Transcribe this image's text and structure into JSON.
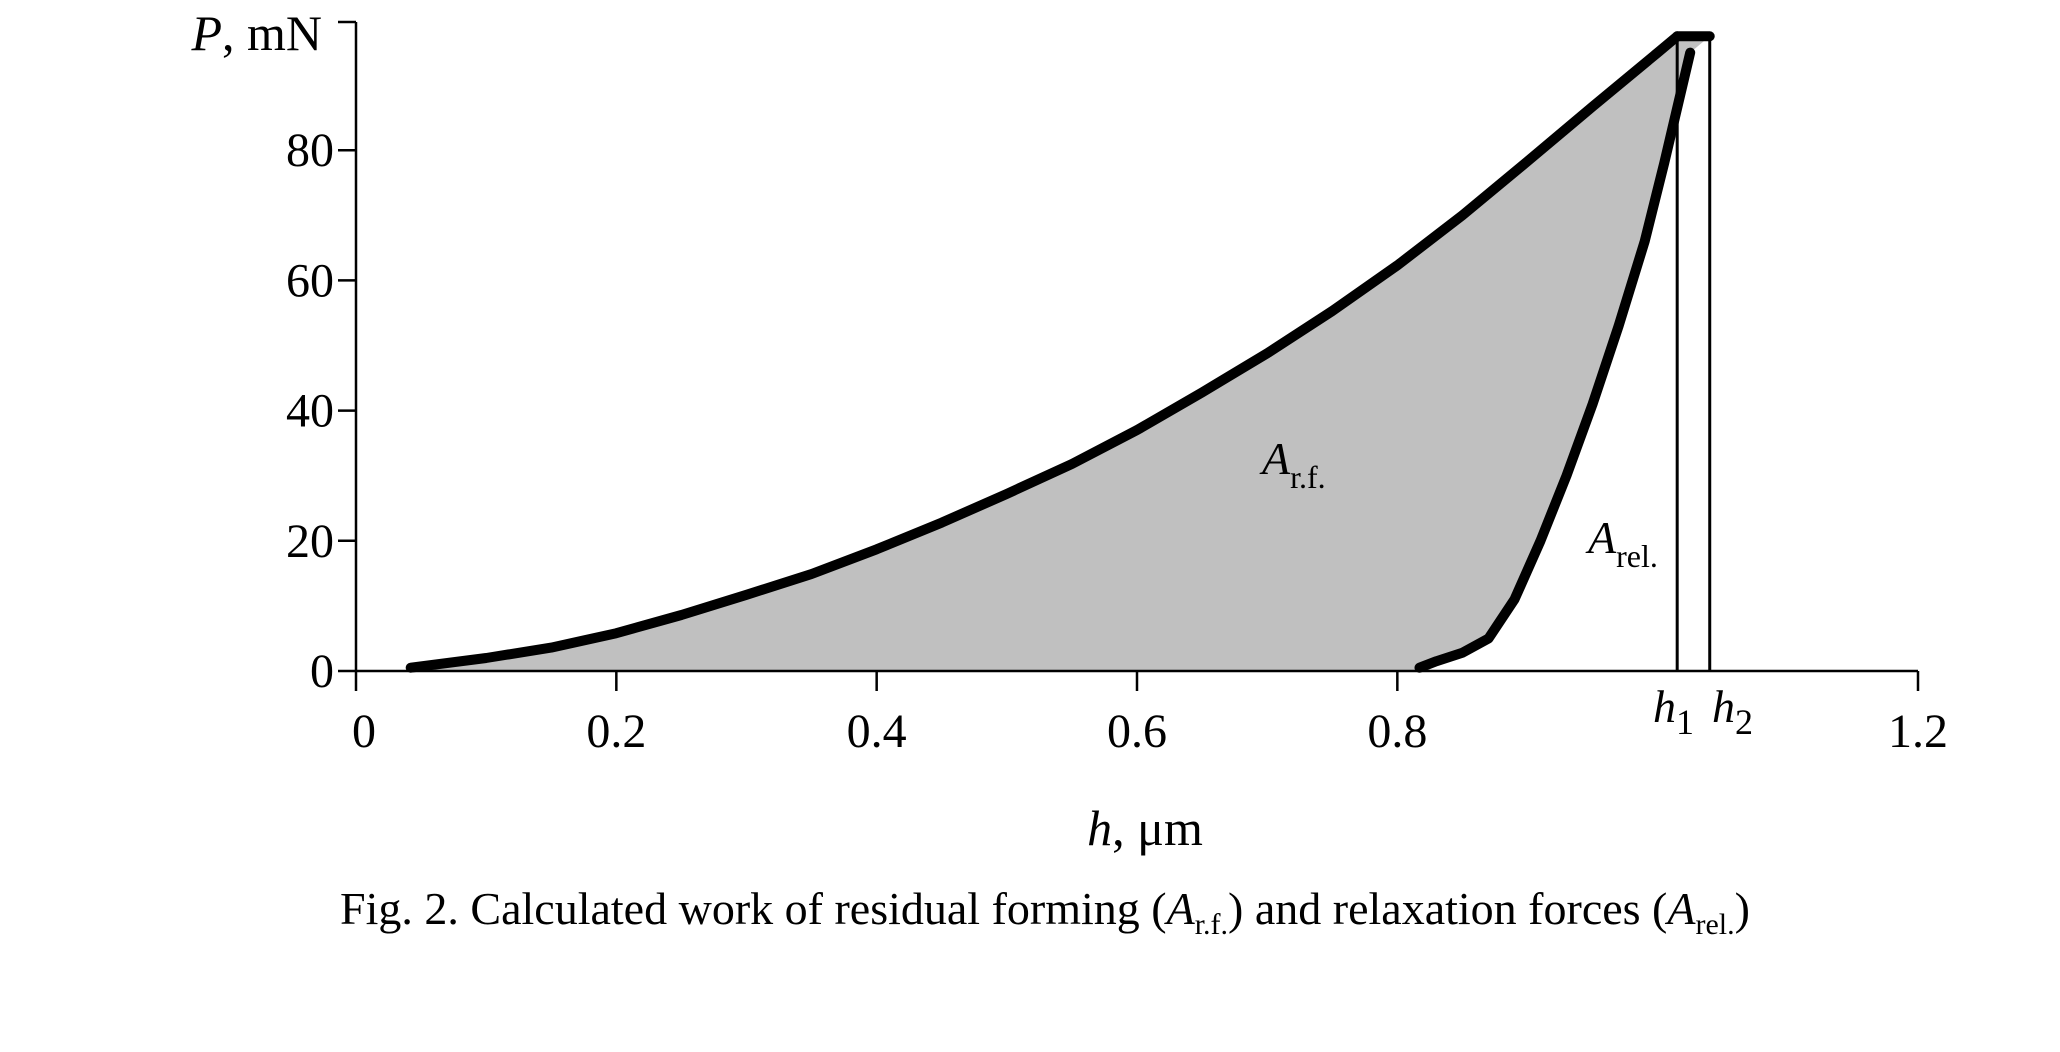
{
  "chart_data": {
    "type": "area",
    "xlabel": {
      "var": "h",
      "unit": "μm"
    },
    "ylabel": {
      "var": "P",
      "unit": "mN"
    },
    "xlim": [
      0,
      1.2
    ],
    "ylim": [
      0,
      100
    ],
    "x_ticks": [
      {
        "value": 0,
        "label": "0"
      },
      {
        "value": 0.2,
        "label": "0.2"
      },
      {
        "value": 0.4,
        "label": "0.4"
      },
      {
        "value": 0.6,
        "label": "0.6"
      },
      {
        "value": 0.8,
        "label": "0.8"
      },
      {
        "value": 1.2,
        "label": "1.2"
      }
    ],
    "y_ticks": [
      {
        "value": 0,
        "label": "0"
      },
      {
        "value": 20,
        "label": "20"
      },
      {
        "value": 40,
        "label": "40"
      },
      {
        "value": 60,
        "label": "60"
      },
      {
        "value": 80,
        "label": "80"
      }
    ],
    "grid": false,
    "series": [
      {
        "x": [
          0.042,
          0.1,
          0.15,
          0.2,
          0.25,
          0.3,
          0.35,
          0.4,
          0.45,
          0.5,
          0.55,
          0.6,
          0.65,
          0.7,
          0.75,
          0.8,
          0.85,
          0.9,
          0.95,
          1.0,
          1.015
        ],
        "y": [
          0.5,
          2.0,
          3.6,
          5.8,
          8.6,
          11.7,
          14.9,
          18.7,
          22.8,
          27.2,
          31.8,
          37.0,
          42.8,
          48.8,
          55.3,
          62.3,
          70.0,
          78.3,
          86.7,
          95.0,
          97.5
        ]
      },
      {
        "x": [
          0.817,
          0.83,
          0.85,
          0.87,
          0.89,
          0.91,
          0.93,
          0.95,
          0.97,
          0.99,
          1.005,
          1.025
        ],
        "y": [
          0.5,
          1.5,
          2.8,
          5.0,
          11.0,
          20.0,
          30.0,
          41.0,
          53.0,
          66.0,
          78.0,
          95.0
        ]
      }
    ],
    "plateau": {
      "x": [
        1.015,
        1.04
      ],
      "y": 97.5
    },
    "markers": [
      {
        "name": "h",
        "sub": "1",
        "x": 1.015
      },
      {
        "name": "h",
        "sub": "2",
        "x": 1.04
      }
    ],
    "region_labels": [
      {
        "name": "A",
        "sub": "r.f."
      },
      {
        "name": "A",
        "sub": "rel."
      }
    ],
    "colors": {
      "fill": "#c0c0c0",
      "curve": "#000000",
      "axis": "#000000"
    }
  },
  "caption": {
    "prefix": "Fig. 2. Calculated work of residual forming (",
    "a1": "A",
    "a1_sub": "r.f.",
    "middle": ") and relaxation forces (",
    "a2": "A",
    "a2_sub": "rel.",
    "suffix": ")"
  }
}
